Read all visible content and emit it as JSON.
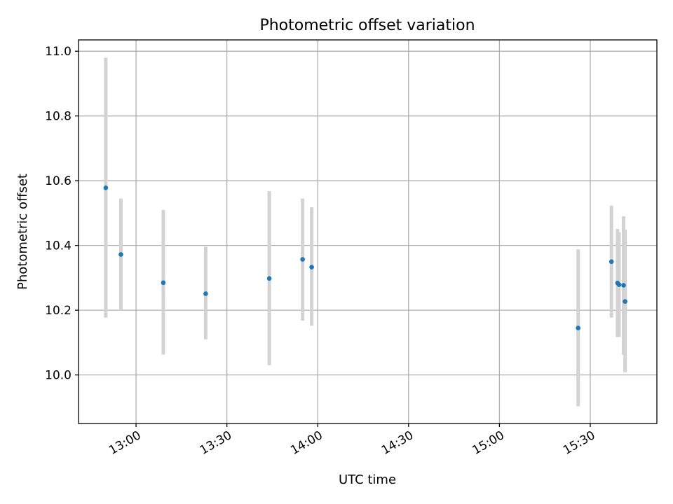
{
  "chart_data": {
    "type": "scatter",
    "title": "Photometric offset variation",
    "xlabel": "UTC time",
    "ylabel": "Photometric offset",
    "x_axis_kind": "time",
    "xlim": [
      "12:41",
      "15:52"
    ],
    "ylim": [
      9.85,
      11.035
    ],
    "grid": true,
    "x_ticks": [
      "13:00",
      "13:30",
      "14:00",
      "14:30",
      "15:00",
      "15:30"
    ],
    "y_ticks": [
      "10.0",
      "10.2",
      "10.4",
      "10.6",
      "10.8",
      "11.0"
    ],
    "point_color": "#1f77b4",
    "errorbar_color": "#d3d3d3",
    "points": [
      {
        "x": "12:50",
        "y": 10.578,
        "ylow": 10.177,
        "yhigh": 10.98
      },
      {
        "x": "12:55",
        "y": 10.372,
        "ylow": 10.2,
        "yhigh": 10.545
      },
      {
        "x": "13:09",
        "y": 10.285,
        "ylow": 10.063,
        "yhigh": 10.51
      },
      {
        "x": "13:23",
        "y": 10.251,
        "ylow": 10.11,
        "yhigh": 10.396
      },
      {
        "x": "13:44",
        "y": 10.298,
        "ylow": 10.03,
        "yhigh": 10.568
      },
      {
        "x": "13:55",
        "y": 10.357,
        "ylow": 10.168,
        "yhigh": 10.545
      },
      {
        "x": "13:58",
        "y": 10.333,
        "ylow": 10.152,
        "yhigh": 10.518
      },
      {
        "x": "15:26",
        "y": 10.145,
        "ylow": 9.903,
        "yhigh": 10.388
      },
      {
        "x": "15:37",
        "y": 10.35,
        "ylow": 10.177,
        "yhigh": 10.523
      },
      {
        "x": "15:39",
        "y": 10.284,
        "ylow": 10.117,
        "yhigh": 10.451
      },
      {
        "x": "15:39.5",
        "y": 10.279,
        "ylow": 10.117,
        "yhigh": 10.441
      },
      {
        "x": "15:41",
        "y": 10.277,
        "ylow": 10.062,
        "yhigh": 10.49
      },
      {
        "x": "15:41.5",
        "y": 10.227,
        "ylow": 10.008,
        "yhigh": 10.449
      }
    ]
  }
}
